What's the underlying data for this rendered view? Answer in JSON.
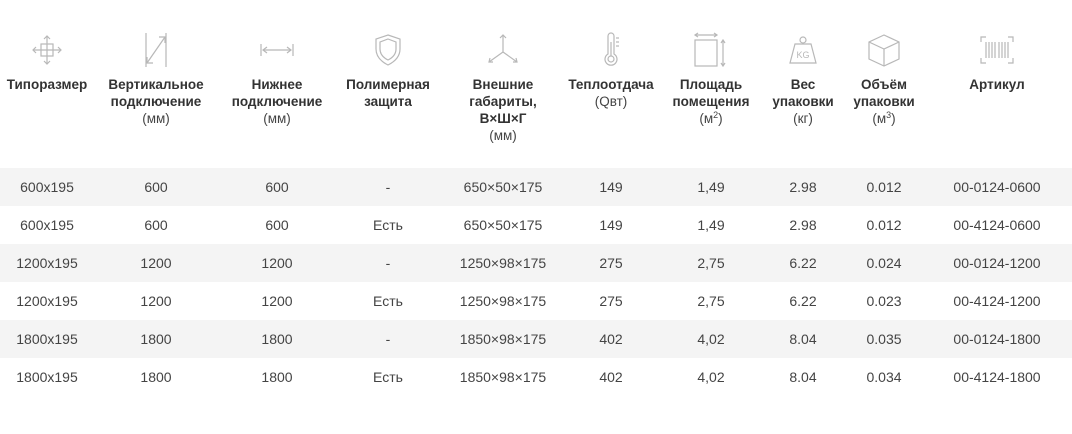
{
  "columns": [
    {
      "key": "size",
      "name_lines": [
        "Типоразмер"
      ],
      "unit": "",
      "icon": "cross-arrows-icon"
    },
    {
      "key": "vertical",
      "name_lines": [
        "Вертикальное",
        "подключение"
      ],
      "unit": "(мм)",
      "icon": "vertical-arrow-icon"
    },
    {
      "key": "bottom",
      "name_lines": [
        "Нижнее",
        "подключение"
      ],
      "unit": "(мм)",
      "icon": "horizontal-arrow-icon"
    },
    {
      "key": "coating",
      "name_lines": [
        "Полимерная",
        "защита"
      ],
      "unit": "",
      "icon": "shield-icon"
    },
    {
      "key": "dims",
      "name_lines": [
        "Внешние",
        "габариты,",
        "В×Ш×Г"
      ],
      "unit": "(мм)",
      "icon": "axes-icon"
    },
    {
      "key": "heat",
      "name_lines": [
        "Теплоотдача"
      ],
      "unit": "(Qвт)",
      "icon": "thermometer-icon"
    },
    {
      "key": "area",
      "name_lines": [
        "Площадь",
        "помещения"
      ],
      "unit": "(м",
      "unit_sup": "2",
      "unit_end": ")",
      "icon": "area-icon"
    },
    {
      "key": "weight",
      "name_lines": [
        "Вес",
        "упаковки"
      ],
      "unit": "(кг)",
      "icon": "weight-icon"
    },
    {
      "key": "volume",
      "name_lines": [
        "Объём",
        "упаковки"
      ],
      "unit": "(м",
      "unit_sup": "3",
      "unit_end": ")",
      "icon": "box-icon"
    },
    {
      "key": "sku",
      "name_lines": [
        "Артикул"
      ],
      "unit": "",
      "icon": "barcode-icon"
    }
  ],
  "rows": [
    {
      "size": "600х195",
      "vertical": "600",
      "bottom": "600",
      "coating": "-",
      "dims": "650×50×175",
      "heat": "149",
      "area": "1,49",
      "weight": "2.98",
      "volume": "0.012",
      "sku": "00-0124-0600"
    },
    {
      "size": "600х195",
      "vertical": "600",
      "bottom": "600",
      "coating": "Есть",
      "dims": "650×50×175",
      "heat": "149",
      "area": "1,49",
      "weight": "2.98",
      "volume": "0.012",
      "sku": "00-4124-0600"
    },
    {
      "size": "1200х195",
      "vertical": "1200",
      "bottom": "1200",
      "coating": "-",
      "dims": "1250×98×175",
      "heat": "275",
      "area": "2,75",
      "weight": "6.22",
      "volume": "0.024",
      "sku": "00-0124-1200"
    },
    {
      "size": "1200х195",
      "vertical": "1200",
      "bottom": "1200",
      "coating": "Есть",
      "dims": "1250×98×175",
      "heat": "275",
      "area": "2,75",
      "weight": "6.22",
      "volume": "0.023",
      "sku": "00-4124-1200"
    },
    {
      "size": "1800х195",
      "vertical": "1800",
      "bottom": "1800",
      "coating": "-",
      "dims": "1850×98×175",
      "heat": "402",
      "area": "4,02",
      "weight": "8.04",
      "volume": "0.035",
      "sku": "00-0124-1800"
    },
    {
      "size": "1800х195",
      "vertical": "1800",
      "bottom": "1800",
      "coating": "Есть",
      "dims": "1850×98×175",
      "heat": "402",
      "area": "4,02",
      "weight": "8.04",
      "volume": "0.034",
      "sku": "00-4124-1800"
    }
  ],
  "colors": {
    "icon_stroke": "#b8b8b8",
    "row_shade": "#f4f4f4",
    "text": "#444444"
  }
}
